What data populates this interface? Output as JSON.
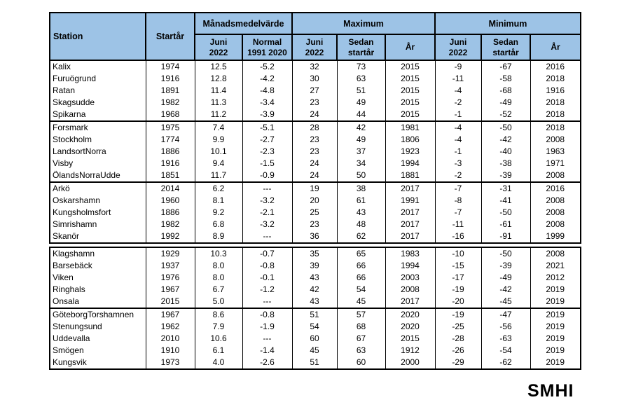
{
  "page": {
    "logo": "SMHI"
  },
  "colors": {
    "header_bg": "#9DC3E6",
    "border": "#000000",
    "background": "#ffffff"
  },
  "table": {
    "header": {
      "station": "Station",
      "startyear": "Startår",
      "groups": [
        {
          "label": "Månadsmedelvärde",
          "cols": [
            "Juni\n2022",
            "Normal\n1991 2020"
          ]
        },
        {
          "label": "Maximum",
          "cols": [
            "Juni\n2022",
            "Sedan\nstartår",
            "År"
          ]
        },
        {
          "label": "Minimum",
          "cols": [
            "Juni\n2022",
            "Sedan\nstartår",
            "År"
          ]
        }
      ]
    },
    "blocks": [
      {
        "groups": [
          {
            "rows": [
              [
                "Kalix",
                "1974",
                "12.5",
                "-5.2",
                "32",
                "73",
                "2015",
                "-9",
                "-67",
                "2016"
              ],
              [
                "Furuögrund",
                "1916",
                "12.8",
                "-4.2",
                "30",
                "63",
                "2015",
                "-11",
                "-58",
                "2018"
              ],
              [
                "Ratan",
                "1891",
                "11.4",
                "-4.8",
                "27",
                "51",
                "2015",
                "-4",
                "-68",
                "1916"
              ],
              [
                "Skagsudde",
                "1982",
                "11.3",
                "-3.4",
                "23",
                "49",
                "2015",
                "-2",
                "-49",
                "2018"
              ],
              [
                "Spikarna",
                "1968",
                "11.2",
                "-3.9",
                "24",
                "44",
                "2015",
                "-1",
                "-52",
                "2018"
              ]
            ]
          },
          {
            "rows": [
              [
                "Forsmark",
                "1975",
                "7.4",
                "-5.1",
                "28",
                "42",
                "1981",
                "-4",
                "-50",
                "2018"
              ],
              [
                "Stockholm",
                "1774",
                "9.9",
                "-2.7",
                "23",
                "49",
                "1806",
                "-4",
                "-42",
                "2008"
              ],
              [
                "LandsortNorra",
                "1886",
                "10.1",
                "-2.3",
                "23",
                "37",
                "1923",
                "-1",
                "-40",
                "1963"
              ],
              [
                "Visby",
                "1916",
                "9.4",
                "-1.5",
                "24",
                "34",
                "1994",
                "-3",
                "-38",
                "1971"
              ],
              [
                "ÖlandsNorraUdde",
                "1851",
                "11.7",
                "-0.9",
                "24",
                "50",
                "1881",
                "-2",
                "-39",
                "2008"
              ]
            ]
          },
          {
            "rows": [
              [
                "Arkö",
                "2014",
                "6.2",
                "---",
                "19",
                "38",
                "2017",
                "-7",
                "-31",
                "2016"
              ],
              [
                "Oskarshamn",
                "1960",
                "8.1",
                "-3.2",
                "20",
                "61",
                "1991",
                "-8",
                "-41",
                "2008"
              ],
              [
                "Kungsholmsfort",
                "1886",
                "9.2",
                "-2.1",
                "25",
                "43",
                "2017",
                "-7",
                "-50",
                "2008"
              ],
              [
                "Simrishamn",
                "1982",
                "6.8",
                "-3.2",
                "23",
                "48",
                "2017",
                "-11",
                "-61",
                "2008"
              ],
              [
                "Skanör",
                "1992",
                "8.9",
                "---",
                "36",
                "62",
                "2017",
                "-16",
                "-91",
                "1999"
              ]
            ]
          }
        ]
      },
      {
        "groups": [
          {
            "rows": [
              [
                "Klagshamn",
                "1929",
                "10.3",
                "-0.7",
                "35",
                "65",
                "1983",
                "-10",
                "-50",
                "2008"
              ],
              [
                "Barsebäck",
                "1937",
                "8.0",
                "-0.8",
                "39",
                "66",
                "1994",
                "-15",
                "-39",
                "2021"
              ],
              [
                "Viken",
                "1976",
                "8.0",
                "-0.1",
                "43",
                "66",
                "2003",
                "-17",
                "-49",
                "2012"
              ],
              [
                "Ringhals",
                "1967",
                "6.7",
                "-1.2",
                "42",
                "54",
                "2008",
                "-19",
                "-42",
                "2019"
              ],
              [
                "Onsala",
                "2015",
                "5.0",
                "---",
                "43",
                "45",
                "2017",
                "-20",
                "-45",
                "2019"
              ]
            ]
          },
          {
            "rows": [
              [
                "GöteborgTorshamnen",
                "1967",
                "8.6",
                "-0.8",
                "51",
                "57",
                "2020",
                "-19",
                "-47",
                "2019"
              ],
              [
                "Stenungsund",
                "1962",
                "7.9",
                "-1.9",
                "54",
                "68",
                "2020",
                "-25",
                "-56",
                "2019"
              ],
              [
                "Uddevalla",
                "2010",
                "10.6",
                "---",
                "60",
                "67",
                "2015",
                "-28",
                "-63",
                "2019"
              ],
              [
                "Smögen",
                "1910",
                "6.1",
                "-1.4",
                "45",
                "63",
                "1912",
                "-26",
                "-54",
                "2019"
              ],
              [
                "Kungsvik",
                "1973",
                "4.0",
                "-2.6",
                "51",
                "60",
                "2000",
                "-29",
                "-62",
                "2019"
              ]
            ]
          }
        ]
      }
    ]
  }
}
